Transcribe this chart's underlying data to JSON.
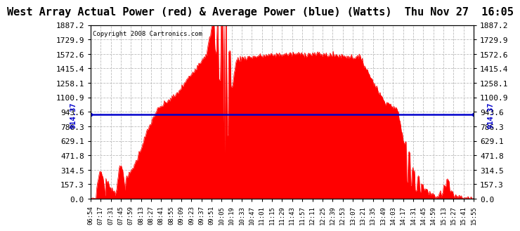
{
  "title": "West Array Actual Power (red) & Average Power (blue) (Watts)  Thu Nov 27  16:05",
  "copyright": "Copyright 2008 Cartronics.com",
  "avg_power": 914.37,
  "ymax": 1887.2,
  "yticks": [
    0.0,
    157.3,
    314.5,
    471.8,
    629.1,
    786.3,
    943.6,
    1100.9,
    1258.1,
    1415.4,
    1572.6,
    1729.9,
    1887.2
  ],
  "background_color": "#ffffff",
  "grid_color": "#bbbbbb",
  "fill_color": "#ff0000",
  "avg_line_color": "#0000cc",
  "title_fontsize": 11,
  "tick_fontsize": 8,
  "copyright_fontsize": 6.5,
  "times_labels": [
    "06:54",
    "07:17",
    "07:31",
    "07:45",
    "07:59",
    "08:13",
    "08:27",
    "08:41",
    "08:55",
    "09:09",
    "09:23",
    "09:37",
    "09:51",
    "10:05",
    "10:19",
    "10:33",
    "10:47",
    "11:01",
    "11:15",
    "11:29",
    "11:43",
    "11:57",
    "12:11",
    "12:25",
    "12:39",
    "12:53",
    "13:07",
    "13:21",
    "13:35",
    "13:49",
    "14:03",
    "14:17",
    "14:31",
    "14:45",
    "14:59",
    "15:13",
    "15:27",
    "15:41",
    "15:55"
  ]
}
